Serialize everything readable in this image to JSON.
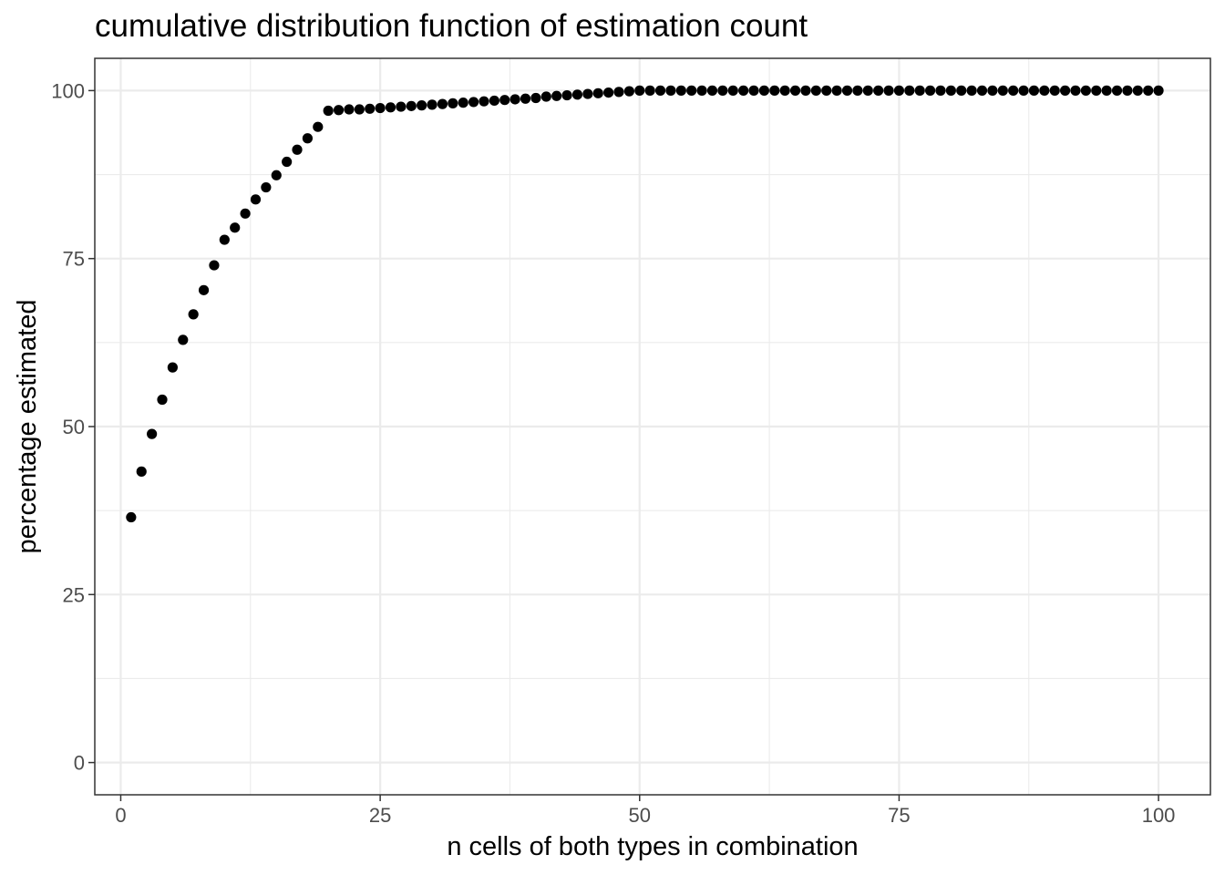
{
  "chart_data": {
    "type": "scatter",
    "title": "cumulative distribution function of estimation count",
    "xlabel": "n cells of both types in combination",
    "ylabel": "percentage estimated",
    "xlim": [
      -2.5,
      105
    ],
    "ylim": [
      -4.8,
      104.8
    ],
    "x_ticks": [
      0,
      25,
      50,
      75,
      100
    ],
    "y_ticks": [
      0,
      25,
      50,
      75,
      100
    ],
    "x_tick_labels": [
      "0",
      "25",
      "50",
      "75",
      "100"
    ],
    "y_tick_labels": [
      "0",
      "25",
      "50",
      "75",
      "100"
    ],
    "x_minor_ticks": [
      12.5,
      37.5,
      62.5,
      87.5
    ],
    "y_minor_ticks": [
      12.5,
      37.5,
      62.5,
      87.5
    ],
    "grid": true,
    "legend": "none",
    "point_color": "#000000",
    "series": [
      {
        "x": [
          1,
          2,
          3,
          4,
          5,
          6,
          7,
          8,
          9,
          10,
          11,
          12,
          13,
          14,
          15,
          16,
          17,
          18,
          19,
          20,
          21,
          22,
          23,
          24,
          25,
          26,
          27,
          28,
          29,
          30,
          31,
          32,
          33,
          34,
          35,
          36,
          37,
          38,
          39,
          40,
          41,
          42,
          43,
          44,
          45,
          46,
          47,
          48,
          49,
          50,
          51,
          52,
          53,
          54,
          55,
          56,
          57,
          58,
          59,
          60,
          61,
          62,
          63,
          64,
          65,
          66,
          67,
          68,
          69,
          70,
          71,
          72,
          73,
          74,
          75,
          76,
          77,
          78,
          79,
          80,
          81,
          82,
          83,
          84,
          85,
          86,
          87,
          88,
          89,
          90,
          91,
          92,
          93,
          94,
          95,
          96,
          97,
          98,
          99,
          100
        ],
        "y": [
          36.5,
          43.3,
          48.9,
          54.0,
          58.8,
          62.9,
          66.7,
          70.3,
          74.0,
          77.8,
          79.6,
          81.7,
          83.8,
          85.6,
          87.4,
          89.4,
          91.2,
          92.9,
          94.6,
          97.0,
          97.1,
          97.2,
          97.2,
          97.3,
          97.4,
          97.5,
          97.6,
          97.7,
          97.8,
          97.9,
          98.0,
          98.1,
          98.2,
          98.3,
          98.4,
          98.5,
          98.6,
          98.7,
          98.8,
          98.9,
          99.1,
          99.2,
          99.3,
          99.4,
          99.5,
          99.6,
          99.7,
          99.8,
          99.9,
          100,
          100,
          100,
          100,
          100,
          100,
          100,
          100,
          100,
          100,
          100,
          100,
          100,
          100,
          100,
          100,
          100,
          100,
          100,
          100,
          100,
          100,
          100,
          100,
          100,
          100,
          100,
          100,
          100,
          100,
          100,
          100,
          100,
          100,
          100,
          100,
          100,
          100,
          100,
          100,
          100,
          100,
          100,
          100,
          100,
          100,
          100,
          100,
          100,
          100,
          100
        ]
      }
    ]
  }
}
